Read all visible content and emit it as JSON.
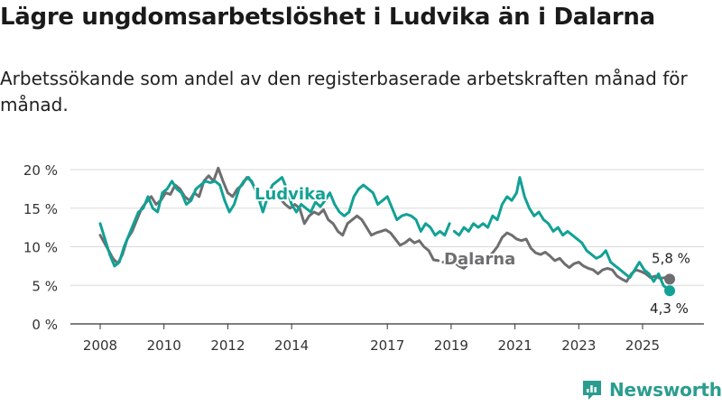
{
  "title": "Lägre ungdomsarbetslöshet i Ludvika än i Dalarna",
  "subtitle": "Arbetssökande som andel av den registerbaserade arbetskraften månad för månad.",
  "brand": "Newsworthy",
  "colors": {
    "ludvika": "#12a195",
    "dalarna": "#6e6e70",
    "grid": "#d9d9d9",
    "axis": "#333333",
    "brand": "#2a9d8f"
  },
  "chart_data": {
    "type": "line",
    "title": "Lägre ungdomsarbetslöshet i Ludvika än i Dalarna",
    "ylabel": "",
    "xlabel": "",
    "ylim": [
      0,
      20
    ],
    "xlim": [
      2007.6,
      2026.6
    ],
    "grid": true,
    "y_ticks": [
      0,
      5,
      10,
      15,
      20
    ],
    "y_tick_labels": [
      "0 %",
      "5 %",
      "10 %",
      "15 %",
      "20 %"
    ],
    "x_ticks": [
      2008,
      2010,
      2012,
      2014,
      2017,
      2019,
      2021,
      2023,
      2025
    ],
    "x_tick_labels": [
      "2008",
      "2010",
      "2012",
      "2014",
      "2017",
      "2019",
      "2021",
      "2023",
      "2025"
    ],
    "series": [
      {
        "name": "Dalarna",
        "label": "Dalarna",
        "color_key": "dalarna",
        "end_label": "5,8 %",
        "end_value": 5.8,
        "points": [
          [
            2008.0,
            11.5
          ],
          [
            2008.2,
            10.0
          ],
          [
            2008.4,
            8.5
          ],
          [
            2008.55,
            7.8
          ],
          [
            2008.7,
            9.0
          ],
          [
            2008.85,
            11.0
          ],
          [
            2009.0,
            12.0
          ],
          [
            2009.15,
            13.5
          ],
          [
            2009.3,
            15.0
          ],
          [
            2009.45,
            15.8
          ],
          [
            2009.6,
            16.5
          ],
          [
            2009.75,
            15.5
          ],
          [
            2009.9,
            16.0
          ],
          [
            2010.05,
            17.0
          ],
          [
            2010.2,
            16.8
          ],
          [
            2010.35,
            18.0
          ],
          [
            2010.5,
            17.5
          ],
          [
            2010.65,
            16.5
          ],
          [
            2010.8,
            16.0
          ],
          [
            2010.95,
            17.0
          ],
          [
            2011.1,
            16.5
          ],
          [
            2011.25,
            18.5
          ],
          [
            2011.4,
            19.2
          ],
          [
            2011.55,
            18.5
          ],
          [
            2011.7,
            20.2
          ],
          [
            2011.85,
            18.5
          ],
          [
            2012.0,
            17.0
          ],
          [
            2012.15,
            16.5
          ],
          [
            2012.3,
            17.5
          ],
          [
            2012.45,
            18.0
          ],
          [
            2012.6,
            19.0
          ],
          [
            2012.75,
            18.5
          ],
          [
            2012.9,
            17.0
          ],
          [
            2013.05,
            16.0
          ],
          [
            2013.2,
            16.5
          ],
          [
            2013.35,
            17.5
          ],
          [
            2013.5,
            17.0
          ],
          [
            2013.65,
            16.2
          ],
          [
            2013.8,
            15.5
          ],
          [
            2013.95,
            15.0
          ],
          [
            2014.1,
            15.5
          ],
          [
            2014.25,
            15.0
          ],
          [
            2014.4,
            13.0
          ],
          [
            2014.55,
            14.0
          ],
          [
            2014.7,
            14.5
          ],
          [
            2014.85,
            14.2
          ],
          [
            2015.0,
            14.8
          ],
          [
            2015.15,
            13.5
          ],
          [
            2015.3,
            13.0
          ],
          [
            2015.45,
            12.0
          ],
          [
            2015.6,
            11.5
          ],
          [
            2015.75,
            13.0
          ],
          [
            2015.9,
            13.5
          ],
          [
            2016.05,
            14.0
          ],
          [
            2016.2,
            13.5
          ],
          [
            2016.35,
            12.5
          ],
          [
            2016.5,
            11.5
          ],
          [
            2016.65,
            11.8
          ],
          [
            2016.8,
            12.0
          ],
          [
            2016.95,
            12.2
          ],
          [
            2017.1,
            11.8
          ],
          [
            2017.25,
            11.0
          ],
          [
            2017.4,
            10.2
          ],
          [
            2017.55,
            10.5
          ],
          [
            2017.7,
            11.0
          ],
          [
            2017.85,
            10.5
          ],
          [
            2018.0,
            10.8
          ],
          [
            2018.15,
            10.0
          ],
          [
            2018.3,
            9.5
          ],
          [
            2018.45,
            8.3
          ],
          [
            2018.6,
            8.2
          ]
        ],
        "points_late": [
          [
            2018.75,
            8.0
          ],
          [
            2018.95,
            8.3
          ],
          [
            2019.1,
            8.0
          ],
          [
            2019.25,
            7.5
          ],
          [
            2019.4,
            7.2
          ],
          [
            2019.55,
            7.8
          ],
          [
            2019.7,
            8.0
          ],
          [
            2019.85,
            8.0
          ],
          [
            2020.0,
            8.0
          ],
          [
            2020.15,
            8.6
          ],
          [
            2020.3,
            9.2
          ],
          [
            2020.45,
            10.0
          ],
          [
            2020.6,
            11.2
          ],
          [
            2020.75,
            11.8
          ],
          [
            2020.9,
            11.5
          ],
          [
            2021.05,
            11.0
          ],
          [
            2021.2,
            10.8
          ],
          [
            2021.35,
            11.0
          ],
          [
            2021.5,
            9.8
          ],
          [
            2021.65,
            9.2
          ],
          [
            2021.8,
            9.0
          ],
          [
            2021.95,
            9.3
          ],
          [
            2022.1,
            8.8
          ],
          [
            2022.25,
            8.2
          ],
          [
            2022.4,
            8.5
          ],
          [
            2022.55,
            7.8
          ],
          [
            2022.7,
            7.3
          ],
          [
            2022.85,
            7.8
          ],
          [
            2023.0,
            8.0
          ],
          [
            2023.15,
            7.5
          ],
          [
            2023.3,
            7.2
          ],
          [
            2023.45,
            7.0
          ],
          [
            2023.6,
            6.5
          ],
          [
            2023.75,
            7.0
          ],
          [
            2023.9,
            7.2
          ],
          [
            2024.05,
            7.0
          ],
          [
            2024.2,
            6.2
          ],
          [
            2024.35,
            5.8
          ],
          [
            2024.5,
            5.5
          ],
          [
            2024.65,
            6.5
          ],
          [
            2024.8,
            7.0
          ],
          [
            2024.95,
            6.8
          ],
          [
            2025.1,
            6.5
          ],
          [
            2025.25,
            6.0
          ],
          [
            2025.4,
            6.2
          ],
          [
            2025.55,
            5.9
          ],
          [
            2025.7,
            6.0
          ],
          [
            2025.85,
            5.8
          ]
        ]
      },
      {
        "name": "Ludvika",
        "label": "Ludvika",
        "color_key": "ludvika",
        "end_label": "4,3 %",
        "end_value": 4.3,
        "points": [
          [
            2008.0,
            13.0
          ],
          [
            2008.15,
            11.0
          ],
          [
            2008.3,
            9.0
          ],
          [
            2008.45,
            7.5
          ],
          [
            2008.6,
            8.0
          ],
          [
            2008.75,
            10.0
          ],
          [
            2008.9,
            11.5
          ],
          [
            2009.05,
            13.0
          ],
          [
            2009.2,
            14.5
          ],
          [
            2009.35,
            15.0
          ],
          [
            2009.5,
            16.5
          ],
          [
            2009.65,
            15.0
          ],
          [
            2009.8,
            14.5
          ],
          [
            2009.95,
            17.0
          ],
          [
            2010.1,
            17.5
          ],
          [
            2010.25,
            18.5
          ],
          [
            2010.4,
            17.5
          ],
          [
            2010.55,
            17.0
          ],
          [
            2010.7,
            15.5
          ],
          [
            2010.85,
            16.0
          ],
          [
            2011.0,
            17.5
          ],
          [
            2011.15,
            18.0
          ],
          [
            2011.3,
            18.5
          ],
          [
            2011.45,
            18.3
          ],
          [
            2011.6,
            18.5
          ],
          [
            2011.75,
            18.0
          ],
          [
            2011.9,
            16.0
          ],
          [
            2012.05,
            14.5
          ],
          [
            2012.2,
            15.5
          ],
          [
            2012.35,
            17.5
          ],
          [
            2012.5,
            18.5
          ],
          [
            2012.65,
            19.0
          ],
          [
            2012.8,
            18.0
          ],
          [
            2012.95,
            16.5
          ],
          [
            2013.1,
            14.5
          ],
          [
            2013.25,
            16.5
          ],
          [
            2013.4,
            18.0
          ],
          [
            2013.55,
            18.5
          ],
          [
            2013.7,
            19.0
          ],
          [
            2013.85,
            17.5
          ],
          [
            2014.0,
            15.5
          ],
          [
            2014.15,
            14.5
          ],
          [
            2014.3,
            15.5
          ],
          [
            2014.45,
            15.0
          ],
          [
            2014.6,
            14.5
          ],
          [
            2014.75,
            15.8
          ],
          [
            2014.9,
            15.2
          ],
          [
            2015.05,
            16.0
          ],
          [
            2015.2,
            17.0
          ],
          [
            2015.35,
            15.5
          ],
          [
            2015.5,
            14.5
          ],
          [
            2015.65,
            14.0
          ],
          [
            2015.8,
            14.5
          ],
          [
            2015.95,
            16.5
          ],
          [
            2016.1,
            17.5
          ],
          [
            2016.25,
            18.0
          ],
          [
            2016.4,
            17.5
          ],
          [
            2016.55,
            17.0
          ],
          [
            2016.7,
            15.5
          ],
          [
            2016.85,
            16.0
          ],
          [
            2017.0,
            16.5
          ],
          [
            2017.15,
            15.0
          ],
          [
            2017.3,
            13.5
          ],
          [
            2017.45,
            14.0
          ],
          [
            2017.6,
            14.2
          ],
          [
            2017.75,
            14.0
          ],
          [
            2017.9,
            13.5
          ],
          [
            2018.05,
            12.0
          ],
          [
            2018.2,
            13.0
          ],
          [
            2018.35,
            12.5
          ],
          [
            2018.5,
            11.5
          ],
          [
            2018.65,
            12.0
          ],
          [
            2018.8,
            11.5
          ],
          [
            2018.95,
            13.0
          ]
        ],
        "points_late": [
          [
            2019.1,
            12.0
          ],
          [
            2019.25,
            11.5
          ],
          [
            2019.4,
            12.5
          ],
          [
            2019.55,
            12.0
          ],
          [
            2019.7,
            13.0
          ],
          [
            2019.85,
            12.5
          ],
          [
            2020.0,
            13.0
          ],
          [
            2020.15,
            12.5
          ],
          [
            2020.3,
            14.0
          ],
          [
            2020.45,
            13.5
          ],
          [
            2020.6,
            15.5
          ],
          [
            2020.75,
            16.5
          ],
          [
            2020.9,
            16.0
          ],
          [
            2021.05,
            17.0
          ],
          [
            2021.15,
            19.0
          ],
          [
            2021.3,
            16.5
          ],
          [
            2021.45,
            15.0
          ],
          [
            2021.6,
            14.0
          ],
          [
            2021.75,
            14.5
          ],
          [
            2021.9,
            13.5
          ],
          [
            2022.05,
            13.0
          ],
          [
            2022.2,
            12.0
          ],
          [
            2022.35,
            12.5
          ],
          [
            2022.5,
            11.5
          ],
          [
            2022.65,
            12.0
          ],
          [
            2022.8,
            11.5
          ],
          [
            2022.95,
            11.0
          ],
          [
            2023.1,
            10.5
          ],
          [
            2023.25,
            9.5
          ],
          [
            2023.4,
            9.0
          ],
          [
            2023.55,
            8.5
          ],
          [
            2023.7,
            8.8
          ],
          [
            2023.85,
            9.5
          ],
          [
            2024.0,
            8.0
          ],
          [
            2024.15,
            7.5
          ],
          [
            2024.3,
            7.0
          ],
          [
            2024.45,
            6.5
          ],
          [
            2024.6,
            6.0
          ],
          [
            2024.75,
            7.0
          ],
          [
            2024.9,
            8.0
          ],
          [
            2025.05,
            7.0
          ],
          [
            2025.2,
            6.5
          ],
          [
            2025.35,
            5.5
          ],
          [
            2025.5,
            6.5
          ],
          [
            2025.65,
            5.0
          ],
          [
            2025.85,
            4.3
          ]
        ]
      }
    ]
  }
}
